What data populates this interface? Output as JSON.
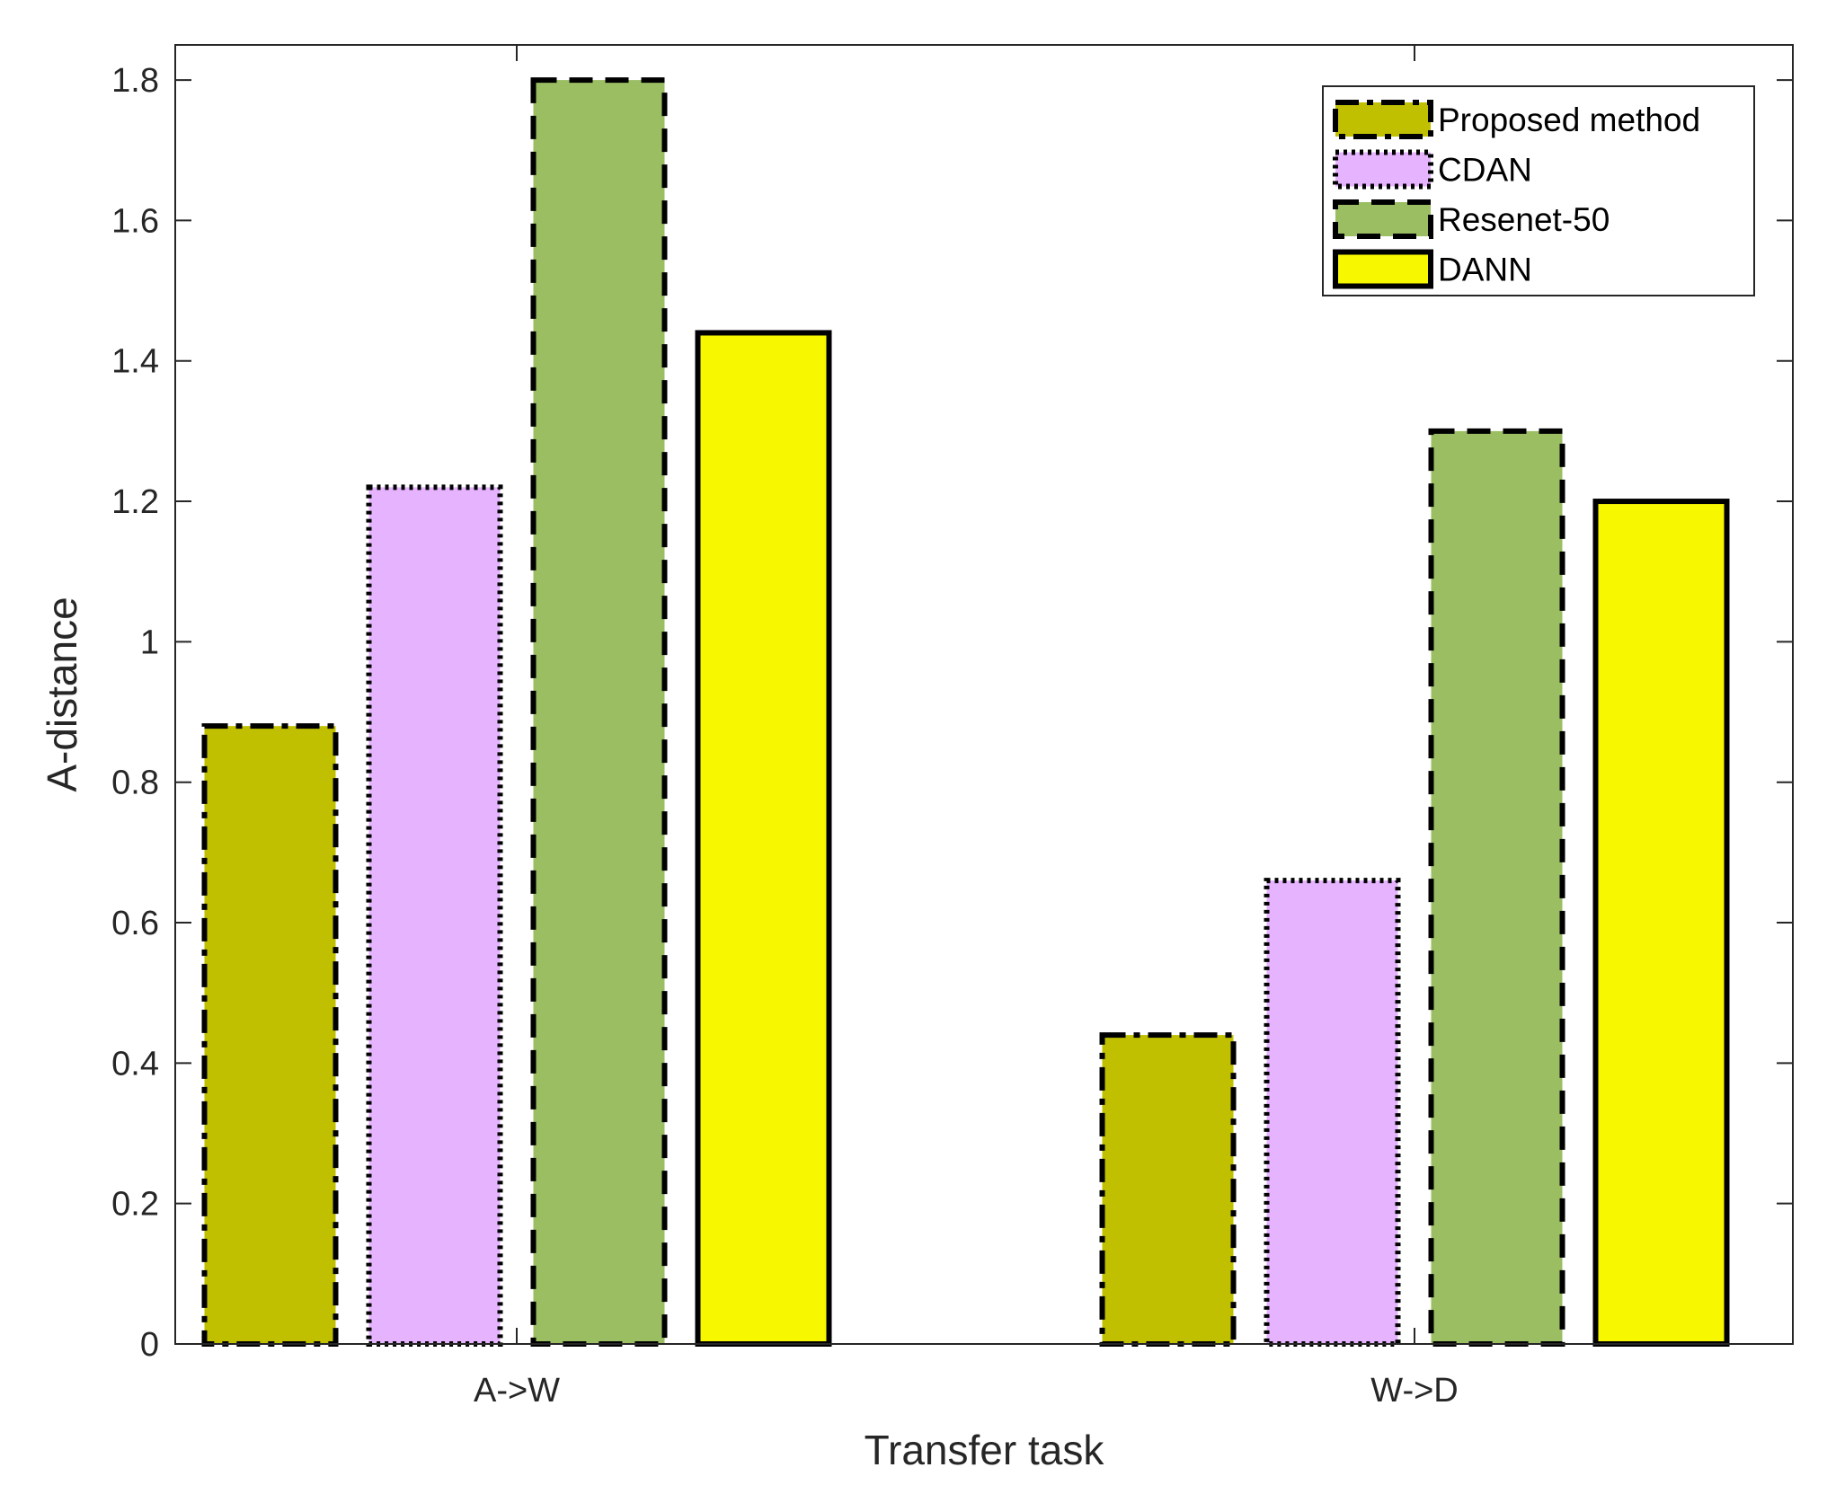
{
  "chart_data": {
    "type": "bar",
    "title": "",
    "xlabel": "Transfer task",
    "ylabel": "A-distance",
    "categories": [
      "A->W",
      "W->D"
    ],
    "ylim": [
      0,
      1.85
    ],
    "yticks": [
      0,
      0.2,
      0.4,
      0.6,
      0.8,
      1,
      1.2,
      1.4,
      1.6,
      1.8
    ],
    "ytick_labels": [
      "0",
      "0.2",
      "0.4",
      "0.6",
      "0.8",
      "1",
      "1.2",
      "1.4",
      "1.6",
      "1.8"
    ],
    "grid": false,
    "legend_position": "top-right",
    "series": [
      {
        "name": "Proposed method",
        "values": [
          0.88,
          0.44
        ],
        "color": "#C0C000",
        "border": "dashdot"
      },
      {
        "name": "CDAN",
        "values": [
          1.22,
          0.66
        ],
        "color": "#E6B3FF",
        "border": "dotted"
      },
      {
        "name": "Resenet-50",
        "values": [
          1.8,
          1.3
        ],
        "color": "#9BBE63",
        "border": "dashed"
      },
      {
        "name": "DANN",
        "values": [
          1.44,
          1.2
        ],
        "color": "#F7F700",
        "border": "solid"
      }
    ]
  }
}
